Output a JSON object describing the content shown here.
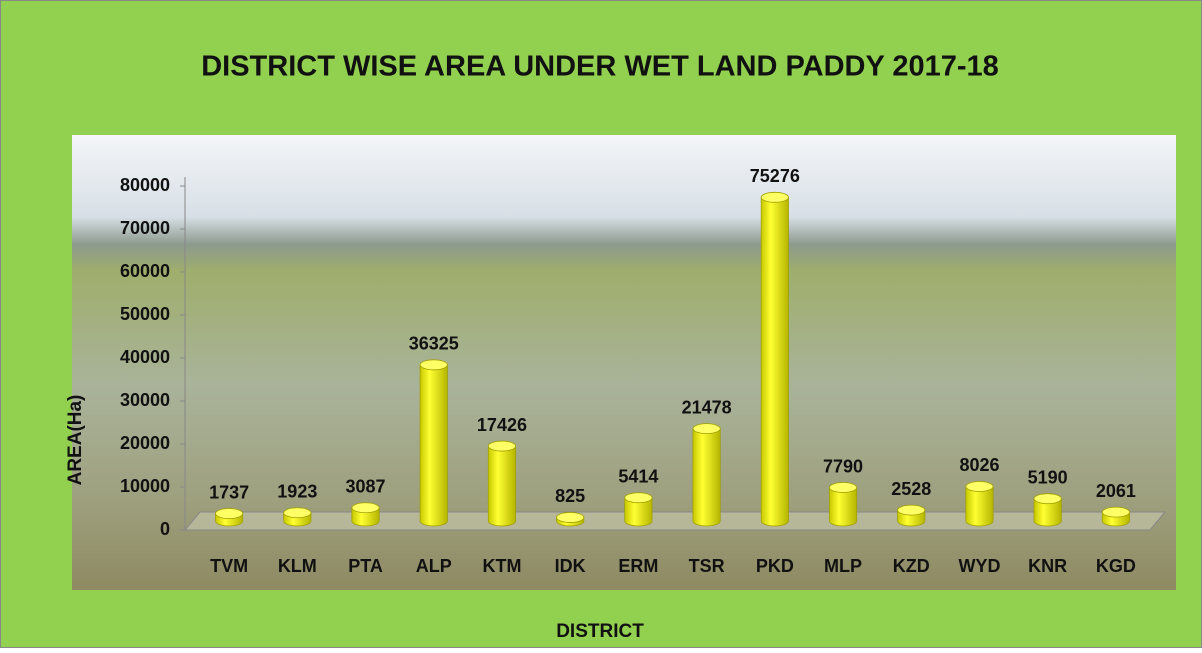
{
  "chart_data": {
    "type": "bar",
    "title": "DISTRICT WISE AREA UNDER WET LAND PADDY 2017-18",
    "x_label": "DISTRICT",
    "y_label": "AREA(Ha)",
    "categories": [
      "TVM",
      "KLM",
      "PTA",
      "ALP",
      "KTM",
      "IDK",
      "ERM",
      "TSR",
      "PKD",
      "MLP",
      "KZD",
      "WYD",
      "KNR",
      "KGD"
    ],
    "values": [
      1737,
      1923,
      3087,
      36325,
      17426,
      825,
      5414,
      21478,
      75276,
      7790,
      2528,
      8026,
      5190,
      2061
    ],
    "color": "#ffff00",
    "ylim": [
      0,
      80000
    ],
    "yticks": [
      0,
      10000,
      20000,
      30000,
      40000,
      50000,
      60000,
      70000,
      80000
    ],
    "grid": false
  }
}
